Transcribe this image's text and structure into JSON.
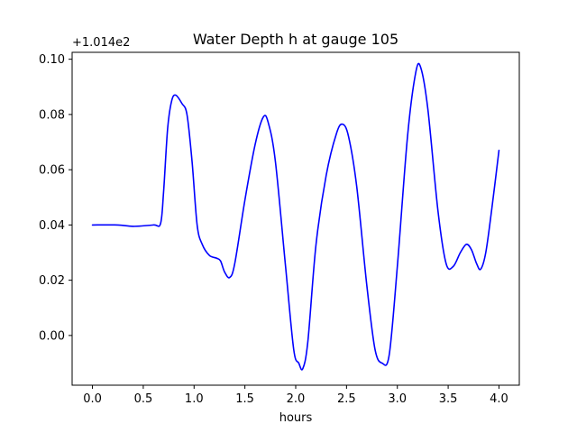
{
  "chart_data": {
    "type": "line",
    "title": "Water Depth h at gauge 105",
    "xlabel": "hours",
    "ylabel": "",
    "y_offset_label": "+1.014e2",
    "xlim": [
      -0.2,
      4.2
    ],
    "ylim": [
      -0.018,
      0.1025
    ],
    "xticks": [
      0.0,
      0.5,
      1.0,
      1.5,
      2.0,
      2.5,
      3.0,
      3.5,
      4.0
    ],
    "xtick_labels": [
      "0.0",
      "0.5",
      "1.0",
      "1.5",
      "2.0",
      "2.5",
      "3.0",
      "3.5",
      "4.0"
    ],
    "yticks": [
      0.0,
      0.02,
      0.04,
      0.06,
      0.08,
      0.1
    ],
    "ytick_labels": [
      "0.00",
      "0.02",
      "0.04",
      "0.06",
      "0.08",
      "0.10"
    ],
    "grid": false,
    "line_color": "#0000ff",
    "series": [
      {
        "x": [
          0.0,
          0.25,
          0.4,
          0.6,
          0.67,
          0.7,
          0.74,
          0.78,
          0.82,
          0.88,
          0.93,
          0.98,
          1.03,
          1.08,
          1.15,
          1.22,
          1.26,
          1.3,
          1.35,
          1.4,
          1.5,
          1.6,
          1.68,
          1.73,
          1.8,
          1.9,
          1.98,
          2.03,
          2.07,
          2.12,
          2.2,
          2.3,
          2.4,
          2.46,
          2.52,
          2.6,
          2.7,
          2.78,
          2.85,
          2.92,
          3.0,
          3.1,
          3.18,
          3.23,
          3.3,
          3.4,
          3.48,
          3.55,
          3.62,
          3.68,
          3.73,
          3.78,
          3.82,
          3.87,
          3.93,
          4.0
        ],
        "y": [
          0.04,
          0.04,
          0.0395,
          0.04,
          0.0405,
          0.052,
          0.075,
          0.085,
          0.087,
          0.084,
          0.08,
          0.063,
          0.04,
          0.033,
          0.029,
          0.028,
          0.027,
          0.023,
          0.021,
          0.026,
          0.049,
          0.069,
          0.079,
          0.077,
          0.063,
          0.025,
          -0.005,
          -0.01,
          -0.012,
          -0.002,
          0.033,
          0.058,
          0.073,
          0.0765,
          0.072,
          0.054,
          0.018,
          -0.005,
          -0.01,
          -0.007,
          0.025,
          0.072,
          0.095,
          0.097,
          0.082,
          0.045,
          0.026,
          0.025,
          0.03,
          0.033,
          0.031,
          0.026,
          0.024,
          0.03,
          0.046,
          0.067
        ]
      }
    ]
  }
}
